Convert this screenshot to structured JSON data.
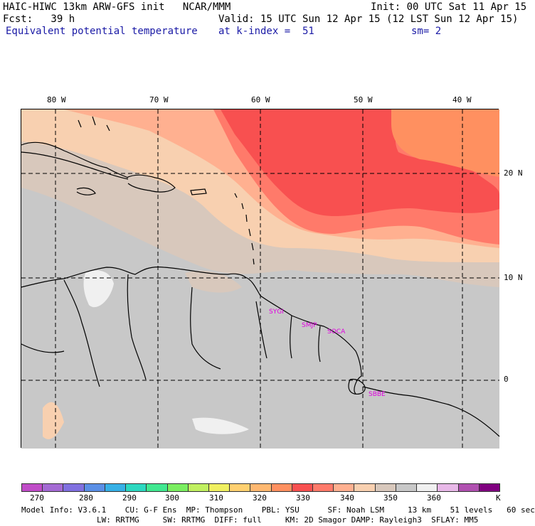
{
  "header": {
    "line1_left": "HAIC-HIWC 13km ARW-GFS init   NCAR/MMM",
    "line1_right": "Init: 00 UTC Sat 11 Apr 15",
    "line2_left": "Fcst:   39 h",
    "line2_right": "Valid: 15 UTC Sun 12 Apr 15 (12 LST Sun 12 Apr 15)",
    "line3_field": "Equivalent potential temperature",
    "line3_level": "at k-index =  51",
    "line3_sm": "sm= 2"
  },
  "lon_labels": [
    "80 W",
    "70 W",
    "60 W",
    "50 W",
    "40 W"
  ],
  "lat_labels": [
    "20 N",
    "10 N",
    "0"
  ],
  "stations": [
    "SYGI",
    "SMJP",
    "SOCA",
    "SBBE"
  ],
  "colorbar": {
    "colors": [
      "#c04cc8",
      "#a46ad4",
      "#8070e0",
      "#5a8fe6",
      "#36b0e6",
      "#2cd8c0",
      "#40e890",
      "#7aee60",
      "#c0f060",
      "#f0f060",
      "#ffd070",
      "#ffb870",
      "#ff9060",
      "#f85050",
      "#ff7a6a",
      "#ffb090",
      "#f8d0b0",
      "#d8c8bc",
      "#c8c8c8",
      "#f0f0f0",
      "#e8b8e8",
      "#b050b0",
      "#800080"
    ],
    "labels": [
      "270",
      "280",
      "290",
      "300",
      "310",
      "320",
      "330",
      "340",
      "350",
      "360"
    ],
    "unit": "K"
  },
  "footer": {
    "line1": "Model Info: V3.6.1    CU: G-F Ens  MP: Thompson    PBL: YSU      SF: Noah LSM     13 km    51 levels   60 sec",
    "line2": "                LW: RRTMG     SW: RRTMG  DIFF: full     KM: 2D Smagor DAMP: Rayleigh3  SFLAY: MM5"
  }
}
